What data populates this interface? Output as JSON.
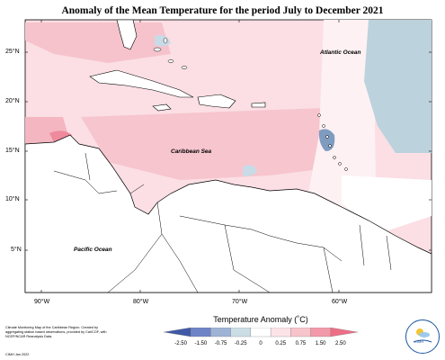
{
  "title": "Anomaly of the Mean Temperature for the period July to December 2021",
  "labels": {
    "atlantic": "Atlantic Ocean",
    "caribbean": "Caribbean Sea",
    "pacific": "Pacific Ocean"
  },
  "latitudes": [
    "25°N",
    "20°N",
    "15°N",
    "10°N",
    "5°N"
  ],
  "longitudes": [
    "90°W",
    "80°W",
    "70°W",
    "60°W"
  ],
  "legend": {
    "title": "Temperature Anomaly (˚C)",
    "ticks": [
      "-2.50",
      "-1.50",
      "-0.75",
      "-0.25",
      "0",
      "0.25",
      "0.75",
      "1.50",
      "2.50"
    ],
    "colors": [
      "#3f59a6",
      "#6f84c6",
      "#9fb3d6",
      "#cbdde5",
      "#ffffff",
      "#fce3e7",
      "#f7c4cc",
      "#f29aa9",
      "#ec6f86"
    ]
  },
  "footnote": "Climate Monitoring Map of the Caribbean Region. Created by aggregating station based observations, provided by CariCOF, with NCEP/NCAR Reanalysis Data.",
  "credit": "CIMH Jan 2022",
  "logo_text": "CIMH",
  "logo_icon": "sun-cloud-icon"
}
